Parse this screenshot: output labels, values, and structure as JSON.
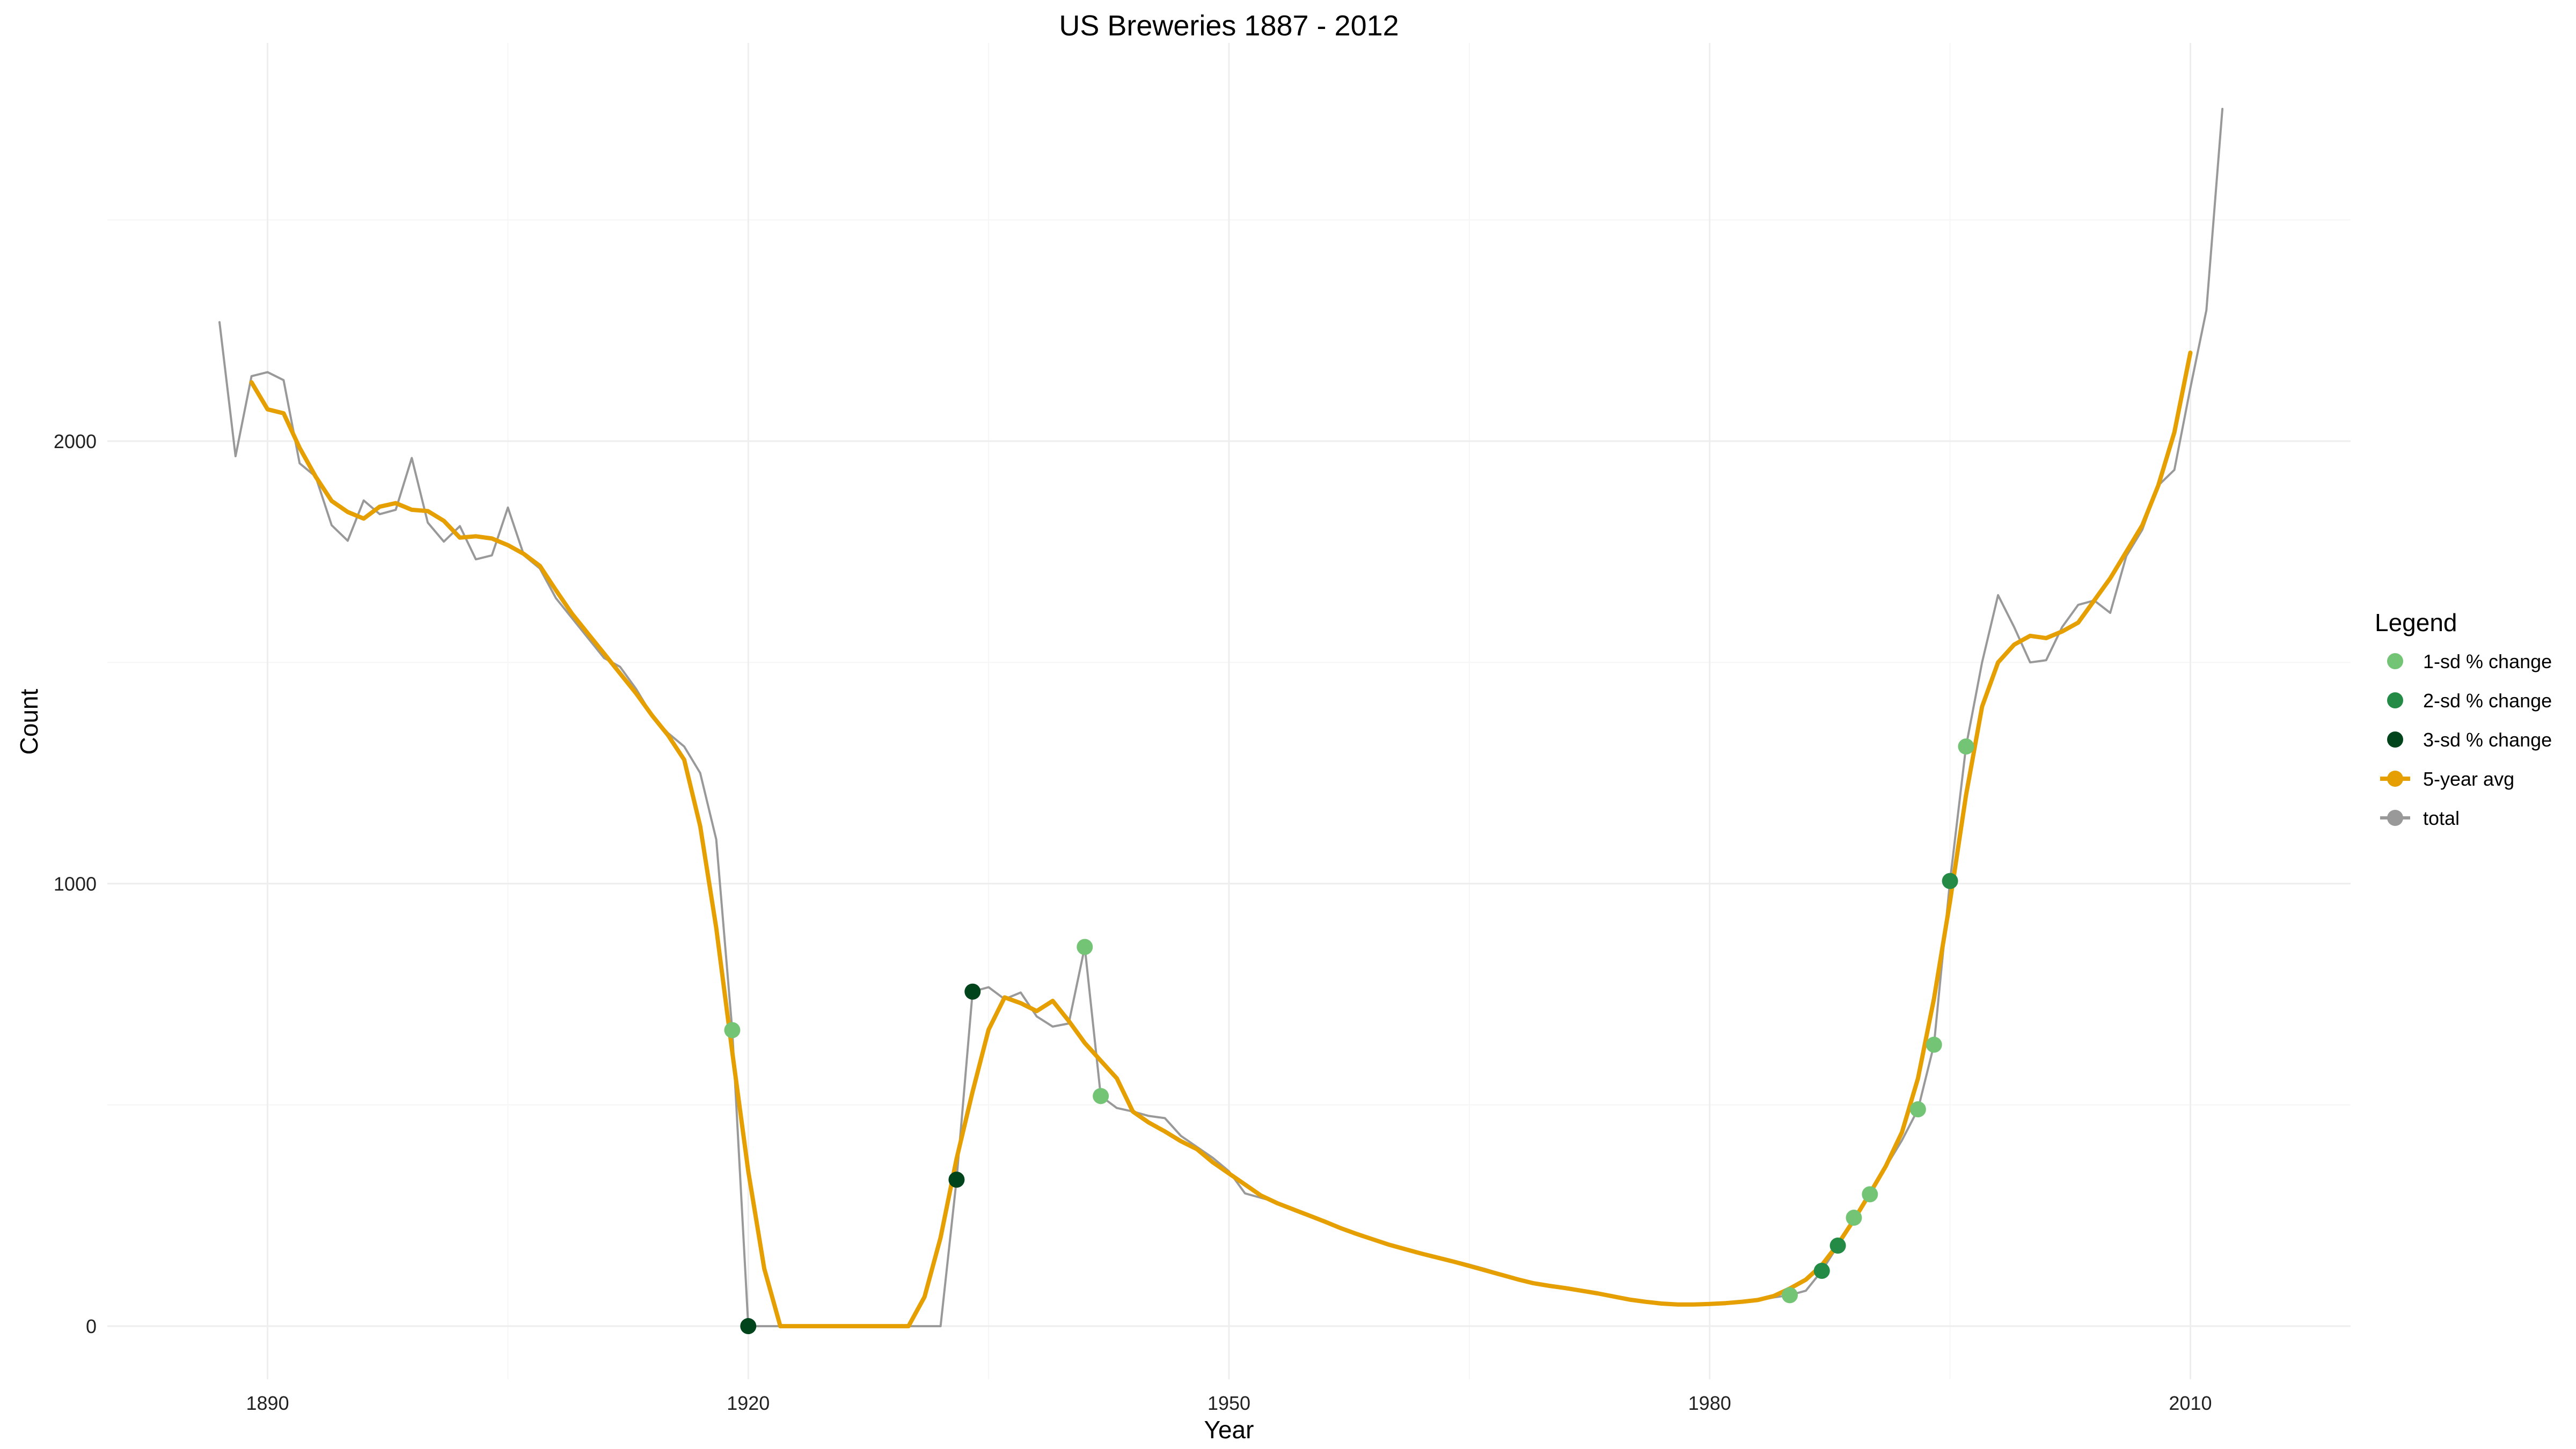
{
  "chart_data": {
    "type": "line",
    "title": "US Breweries 1887 - 2012",
    "xlabel": "Year",
    "ylabel": "Count",
    "xlim": [
      1880,
      2020
    ],
    "ylim": [
      -120,
      2900
    ],
    "x_ticks": [
      1890,
      1920,
      1950,
      1980,
      2010
    ],
    "y_ticks": [
      0,
      1000,
      2000
    ],
    "grid": true,
    "legend": {
      "title": "Legend",
      "position": "right",
      "entries": [
        "1-sd % change",
        "2-sd % change",
        "3-sd % change",
        "5-year avg",
        "total"
      ]
    },
    "colors": {
      "1-sd % change": "#74c476",
      "2-sd % change": "#238b45",
      "3-sd % change": "#00441b",
      "5-year avg": "#e69f00",
      "total": "#999999"
    },
    "series": [
      {
        "name": "total",
        "kind": "line",
        "points": [
          [
            1887,
            2269
          ],
          [
            1888,
            1966
          ],
          [
            1889,
            2147
          ],
          [
            1890,
            2156
          ],
          [
            1891,
            2138
          ],
          [
            1892,
            1950
          ],
          [
            1893,
            1920
          ],
          [
            1894,
            1810
          ],
          [
            1895,
            1775
          ],
          [
            1896,
            1866
          ],
          [
            1897,
            1835
          ],
          [
            1898,
            1845
          ],
          [
            1899,
            1962
          ],
          [
            1900,
            1816
          ],
          [
            1901,
            1773
          ],
          [
            1902,
            1808
          ],
          [
            1903,
            1733
          ],
          [
            1904,
            1742
          ],
          [
            1905,
            1850
          ],
          [
            1906,
            1742
          ],
          [
            1907,
            1712
          ],
          [
            1908,
            1645
          ],
          [
            1909,
            1600
          ],
          [
            1910,
            1555
          ],
          [
            1911,
            1510
          ],
          [
            1912,
            1490
          ],
          [
            1913,
            1440
          ],
          [
            1914,
            1380
          ],
          [
            1915,
            1340
          ],
          [
            1916,
            1310
          ],
          [
            1917,
            1250
          ],
          [
            1918,
            1100
          ],
          [
            1919,
            669
          ],
          [
            1920,
            0
          ],
          [
            1921,
            0
          ],
          [
            1922,
            0
          ],
          [
            1923,
            0
          ],
          [
            1924,
            0
          ],
          [
            1925,
            0
          ],
          [
            1926,
            0
          ],
          [
            1927,
            0
          ],
          [
            1928,
            0
          ],
          [
            1929,
            0
          ],
          [
            1930,
            0
          ],
          [
            1931,
            0
          ],
          [
            1932,
            0
          ],
          [
            1933,
            331
          ],
          [
            1934,
            756
          ],
          [
            1935,
            766
          ],
          [
            1936,
            739
          ],
          [
            1937,
            754
          ],
          [
            1938,
            700
          ],
          [
            1939,
            677
          ],
          [
            1940,
            684
          ],
          [
            1941,
            857
          ],
          [
            1942,
            520
          ],
          [
            1943,
            493
          ],
          [
            1944,
            485
          ],
          [
            1945,
            475
          ],
          [
            1946,
            470
          ],
          [
            1947,
            430
          ],
          [
            1948,
            405
          ],
          [
            1949,
            380
          ],
          [
            1950,
            350
          ],
          [
            1951,
            300
          ],
          [
            1952,
            290
          ],
          [
            1953,
            280
          ],
          [
            1954,
            265
          ],
          [
            1955,
            250
          ],
          [
            1956,
            237
          ],
          [
            1957,
            222
          ],
          [
            1958,
            210
          ],
          [
            1959,
            197
          ],
          [
            1960,
            186
          ],
          [
            1961,
            176
          ],
          [
            1962,
            166
          ],
          [
            1963,
            157
          ],
          [
            1964,
            148
          ],
          [
            1965,
            139
          ],
          [
            1966,
            129
          ],
          [
            1967,
            118
          ],
          [
            1968,
            108
          ],
          [
            1969,
            95
          ],
          [
            1970,
            92
          ],
          [
            1971,
            88
          ],
          [
            1972,
            82
          ],
          [
            1973,
            76
          ],
          [
            1974,
            68
          ],
          [
            1975,
            60
          ],
          [
            1976,
            54
          ],
          [
            1977,
            50
          ],
          [
            1978,
            48
          ],
          [
            1979,
            48
          ],
          [
            1980,
            50
          ],
          [
            1981,
            52
          ],
          [
            1982,
            54
          ],
          [
            1983,
            58
          ],
          [
            1984,
            65
          ],
          [
            1985,
            70
          ],
          [
            1986,
            80
          ],
          [
            1987,
            125
          ],
          [
            1988,
            182
          ],
          [
            1989,
            245
          ],
          [
            1990,
            298
          ],
          [
            1991,
            360
          ],
          [
            1992,
            420
          ],
          [
            1993,
            490
          ],
          [
            1994,
            636
          ],
          [
            1995,
            1006
          ],
          [
            1996,
            1310
          ],
          [
            1997,
            1500
          ],
          [
            1998,
            1652
          ],
          [
            1999,
            1580
          ],
          [
            2000,
            1500
          ],
          [
            2001,
            1505
          ],
          [
            2002,
            1580
          ],
          [
            2003,
            1630
          ],
          [
            2004,
            1640
          ],
          [
            2005,
            1612
          ],
          [
            2006,
            1740
          ],
          [
            2007,
            1800
          ],
          [
            2008,
            1900
          ],
          [
            2009,
            1935
          ],
          [
            2010,
            2120
          ],
          [
            2011,
            2296
          ],
          [
            2012,
            2751
          ]
        ]
      },
      {
        "name": "5-year avg",
        "kind": "line",
        "points": [
          [
            1889,
            2133
          ],
          [
            1890,
            2072
          ],
          [
            1891,
            2063
          ],
          [
            1892,
            1985
          ],
          [
            1893,
            1920
          ],
          [
            1894,
            1865
          ],
          [
            1895,
            1840
          ],
          [
            1896,
            1825
          ],
          [
            1897,
            1852
          ],
          [
            1898,
            1860
          ],
          [
            1899,
            1845
          ],
          [
            1900,
            1842
          ],
          [
            1901,
            1820
          ],
          [
            1902,
            1782
          ],
          [
            1903,
            1785
          ],
          [
            1904,
            1780
          ],
          [
            1905,
            1765
          ],
          [
            1906,
            1745
          ],
          [
            1907,
            1718
          ],
          [
            1908,
            1663
          ],
          [
            1909,
            1610
          ],
          [
            1910,
            1565
          ],
          [
            1911,
            1520
          ],
          [
            1912,
            1475
          ],
          [
            1913,
            1430
          ],
          [
            1914,
            1380
          ],
          [
            1915,
            1335
          ],
          [
            1916,
            1280
          ],
          [
            1917,
            1130
          ],
          [
            1918,
            900
          ],
          [
            1919,
            620
          ],
          [
            1920,
            350
          ],
          [
            1921,
            130
          ],
          [
            1922,
            0
          ],
          [
            1923,
            0
          ],
          [
            1924,
            0
          ],
          [
            1925,
            0
          ],
          [
            1926,
            0
          ],
          [
            1927,
            0
          ],
          [
            1928,
            0
          ],
          [
            1929,
            0
          ],
          [
            1930,
            0
          ],
          [
            1931,
            66
          ],
          [
            1932,
            200
          ],
          [
            1933,
            378
          ],
          [
            1934,
            530
          ],
          [
            1935,
            670
          ],
          [
            1936,
            743
          ],
          [
            1937,
            730
          ],
          [
            1938,
            712
          ],
          [
            1939,
            735
          ],
          [
            1940,
            690
          ],
          [
            1941,
            640
          ],
          [
            1942,
            600
          ],
          [
            1943,
            560
          ],
          [
            1944,
            485
          ],
          [
            1945,
            460
          ],
          [
            1946,
            440
          ],
          [
            1947,
            418
          ],
          [
            1948,
            400
          ],
          [
            1949,
            370
          ],
          [
            1950,
            345
          ],
          [
            1951,
            320
          ],
          [
            1952,
            295
          ],
          [
            1953,
            278
          ],
          [
            1954,
            264
          ],
          [
            1955,
            250
          ],
          [
            1956,
            236
          ],
          [
            1957,
            221
          ],
          [
            1958,
            208
          ],
          [
            1959,
            196
          ],
          [
            1960,
            184
          ],
          [
            1961,
            174
          ],
          [
            1962,
            164
          ],
          [
            1963,
            155
          ],
          [
            1964,
            146
          ],
          [
            1965,
            136
          ],
          [
            1966,
            126
          ],
          [
            1967,
            116
          ],
          [
            1968,
            106
          ],
          [
            1969,
            97
          ],
          [
            1970,
            91
          ],
          [
            1971,
            86
          ],
          [
            1972,
            80
          ],
          [
            1973,
            74
          ],
          [
            1974,
            67
          ],
          [
            1975,
            60
          ],
          [
            1976,
            55
          ],
          [
            1977,
            51
          ],
          [
            1978,
            49
          ],
          [
            1979,
            49
          ],
          [
            1980,
            50
          ],
          [
            1981,
            52
          ],
          [
            1982,
            55
          ],
          [
            1983,
            59
          ],
          [
            1984,
            68
          ],
          [
            1985,
            85
          ],
          [
            1986,
            105
          ],
          [
            1987,
            138
          ],
          [
            1988,
            185
          ],
          [
            1989,
            240
          ],
          [
            1990,
            300
          ],
          [
            1991,
            362
          ],
          [
            1992,
            438
          ],
          [
            1993,
            560
          ],
          [
            1994,
            740
          ],
          [
            1995,
            960
          ],
          [
            1996,
            1200
          ],
          [
            1997,
            1400
          ],
          [
            1998,
            1500
          ],
          [
            1999,
            1540
          ],
          [
            2000,
            1560
          ],
          [
            2001,
            1555
          ],
          [
            2002,
            1570
          ],
          [
            2003,
            1590
          ],
          [
            2004,
            1640
          ],
          [
            2005,
            1690
          ],
          [
            2006,
            1750
          ],
          [
            2007,
            1810
          ],
          [
            2008,
            1900
          ],
          [
            2009,
            2020
          ],
          [
            2010,
            2200
          ]
        ]
      },
      {
        "name": "1-sd % change",
        "kind": "points",
        "points": [
          [
            1919,
            669
          ],
          [
            1941,
            857
          ],
          [
            1942,
            520
          ],
          [
            1985,
            70
          ],
          [
            1989,
            245
          ],
          [
            1990,
            298
          ],
          [
            1993,
            490
          ],
          [
            1994,
            636
          ],
          [
            1996,
            1310
          ]
        ]
      },
      {
        "name": "2-sd % change",
        "kind": "points",
        "points": [
          [
            1987,
            125
          ],
          [
            1988,
            182
          ],
          [
            1995,
            1006
          ]
        ]
      },
      {
        "name": "3-sd % change",
        "kind": "points",
        "points": [
          [
            1920,
            0
          ],
          [
            1933,
            331
          ],
          [
            1934,
            756
          ]
        ]
      }
    ]
  }
}
